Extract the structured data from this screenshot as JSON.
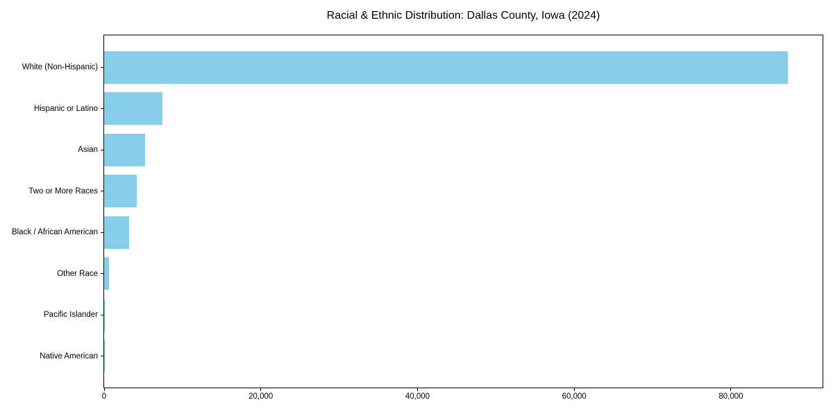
{
  "chart_data": {
    "type": "bar",
    "orientation": "horizontal",
    "title": "Racial & Ethnic Distribution: Dallas County, Iowa (2024)",
    "categories": [
      "White (Non-Hispanic)",
      "Hispanic or Latino",
      "Asian",
      "Two or More Races",
      "Black / African American",
      "Other Race",
      "Pacific Islander",
      "Native American"
    ],
    "values": [
      87300,
      7450,
      5250,
      4200,
      3170,
      600,
      50,
      30
    ],
    "bar_color": "#87CEEB",
    "axis_color": "#000000",
    "text_color": "#000000",
    "background_color": "#ffffff",
    "xlim": [
      0,
      91700
    ],
    "x_ticks": [
      {
        "value": 0,
        "label": "0"
      },
      {
        "value": 20000,
        "label": "20,000"
      },
      {
        "value": 40000,
        "label": "40,000"
      },
      {
        "value": 60000,
        "label": "60,000"
      },
      {
        "value": 80000,
        "label": "80,000"
      }
    ],
    "xlabel": "",
    "ylabel": "",
    "grid": false,
    "legend": false,
    "value_labels": false
  }
}
